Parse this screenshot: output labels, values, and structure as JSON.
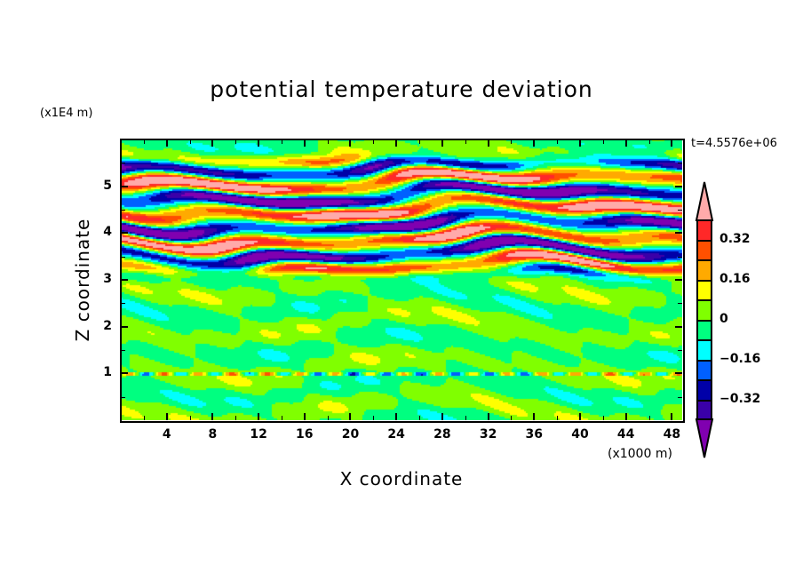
{
  "chart_data": {
    "type": "heatmap",
    "subtype": "filled-contour",
    "title": "potential temperature deviation",
    "xlabel": "X coordinate",
    "ylabel": "Z coordinate",
    "x_unit": "(x1000 m)",
    "y_unit": "(x1E4 m)",
    "time_label": "t=4.5576e+06",
    "xlim": [
      0,
      48.9
    ],
    "ylim": [
      0,
      6
    ],
    "x_ticks": [
      4,
      8,
      12,
      16,
      20,
      24,
      28,
      32,
      36,
      40,
      44,
      48
    ],
    "y_ticks": [
      1,
      2,
      3,
      4,
      5
    ],
    "x_tick_labels": [
      "4",
      "8",
      "12",
      "16",
      "20",
      "24",
      "28",
      "32",
      "36",
      "40",
      "44",
      "48"
    ],
    "y_tick_labels": [
      "1",
      "2",
      "3",
      "4",
      "5"
    ],
    "colorbar": {
      "levels": [
        -0.4,
        -0.32,
        -0.24,
        -0.16,
        -0.08,
        0,
        0.08,
        0.16,
        0.24,
        0.32,
        0.4
      ],
      "colors": [
        "#8000b0",
        "#3a00a8",
        "#0000a8",
        "#0060ff",
        "#00ffff",
        "#00ff80",
        "#80ff00",
        "#ffff00",
        "#ffaa00",
        "#ff5000",
        "#ff2828",
        "#ffaaaa"
      ],
      "labels": [
        {
          "value": 0.32,
          "text": "0.32"
        },
        {
          "value": 0.16,
          "text": "0.16"
        },
        {
          "value": 0,
          "text": "0"
        },
        {
          "value": -0.16,
          "text": "−0.16"
        },
        {
          "value": -0.32,
          "text": "−0.32"
        }
      ],
      "extend": "both"
    },
    "field_description_regions": [
      {
        "z_range": [
          3.1,
          5.6
        ],
        "amplitude": 0.5,
        "pattern": "horizontal alternating strong bands"
      },
      {
        "z_range": [
          0,
          3.1
        ],
        "amplitude": 0.08,
        "pattern": "weak near-zero fluctuations"
      }
    ]
  }
}
